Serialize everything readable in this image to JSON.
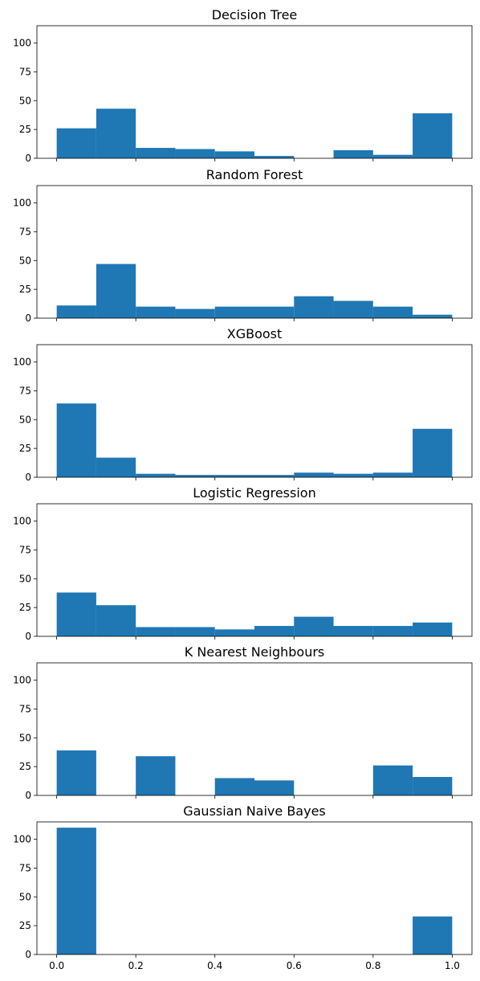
{
  "chart_data": [
    {
      "type": "bar",
      "title": "Decision Tree",
      "bin_edges": [
        0.0,
        0.1,
        0.2,
        0.3,
        0.4,
        0.5,
        0.6,
        0.7,
        0.8,
        0.9,
        1.0
      ],
      "values": [
        26,
        43,
        9,
        8,
        6,
        2,
        0,
        7,
        3,
        39
      ],
      "ylim": [
        0,
        115
      ],
      "yticks": [
        0,
        25,
        50,
        75,
        100
      ],
      "color": "#1f77b4"
    },
    {
      "type": "bar",
      "title": "Random Forest",
      "bin_edges": [
        0.0,
        0.1,
        0.2,
        0.3,
        0.4,
        0.5,
        0.6,
        0.7,
        0.8,
        0.9,
        1.0
      ],
      "values": [
        11,
        47,
        10,
        8,
        10,
        10,
        19,
        15,
        10,
        3
      ],
      "ylim": [
        0,
        115
      ],
      "yticks": [
        0,
        25,
        50,
        75,
        100
      ],
      "color": "#1f77b4"
    },
    {
      "type": "bar",
      "title": "XGBoost",
      "bin_edges": [
        0.0,
        0.1,
        0.2,
        0.3,
        0.4,
        0.5,
        0.6,
        0.7,
        0.8,
        0.9,
        1.0
      ],
      "values": [
        64,
        17,
        3,
        2,
        2,
        2,
        4,
        3,
        4,
        42
      ],
      "ylim": [
        0,
        115
      ],
      "yticks": [
        0,
        25,
        50,
        75,
        100
      ],
      "color": "#1f77b4"
    },
    {
      "type": "bar",
      "title": "Logistic Regression",
      "bin_edges": [
        0.0,
        0.1,
        0.2,
        0.3,
        0.4,
        0.5,
        0.6,
        0.7,
        0.8,
        0.9,
        1.0
      ],
      "values": [
        38,
        27,
        8,
        8,
        6,
        9,
        17,
        9,
        9,
        12
      ],
      "ylim": [
        0,
        115
      ],
      "yticks": [
        0,
        25,
        50,
        75,
        100
      ],
      "color": "#1f77b4"
    },
    {
      "type": "bar",
      "title": "K Nearest Neighbours",
      "bin_edges": [
        0.0,
        0.1,
        0.2,
        0.3,
        0.4,
        0.5,
        0.6,
        0.7,
        0.8,
        0.9,
        1.0
      ],
      "values": [
        39,
        0,
        34,
        0,
        15,
        13,
        0,
        0,
        26,
        16
      ],
      "ylim": [
        0,
        115
      ],
      "yticks": [
        0,
        25,
        50,
        75,
        100
      ],
      "color": "#1f77b4"
    },
    {
      "type": "bar",
      "title": "Gaussian Naive Bayes",
      "bin_edges": [
        0.0,
        0.1,
        0.2,
        0.3,
        0.4,
        0.5,
        0.6,
        0.7,
        0.8,
        0.9,
        1.0
      ],
      "values": [
        110,
        0,
        0,
        0,
        0,
        0,
        0,
        0,
        0,
        33
      ],
      "ylim": [
        0,
        115
      ],
      "yticks": [
        0,
        25,
        50,
        75,
        100
      ],
      "xlim": [
        -0.05,
        1.05
      ],
      "xticks": [
        0.0,
        0.2,
        0.4,
        0.6,
        0.8,
        1.0
      ],
      "xtick_labels": [
        "0.0",
        "0.2",
        "0.4",
        "0.6",
        "0.8",
        "1.0"
      ],
      "color": "#1f77b4"
    }
  ]
}
